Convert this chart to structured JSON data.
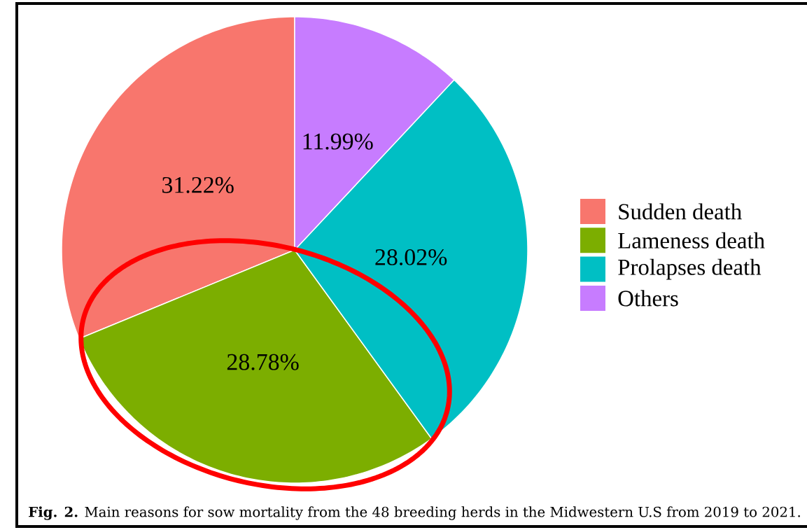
{
  "chart_data": {
    "type": "pie",
    "categories": [
      "Sudden death",
      "Lameness death",
      "Prolapses death",
      "Others"
    ],
    "values": [
      31.22,
      28.78,
      28.02,
      11.99
    ],
    "colors": [
      "#f8766d",
      "#7cae00",
      "#00bfc4",
      "#c77cff"
    ],
    "value_labels": [
      "31.22%",
      "28.78%",
      "28.02%",
      "11.99%"
    ],
    "legend": "right",
    "annotations": [
      "**Fig. 2.** Main reasons for sow mortality from the 48 breeding herds in the Midwestern U.S from 2019 to 2021."
    ]
  }
}
